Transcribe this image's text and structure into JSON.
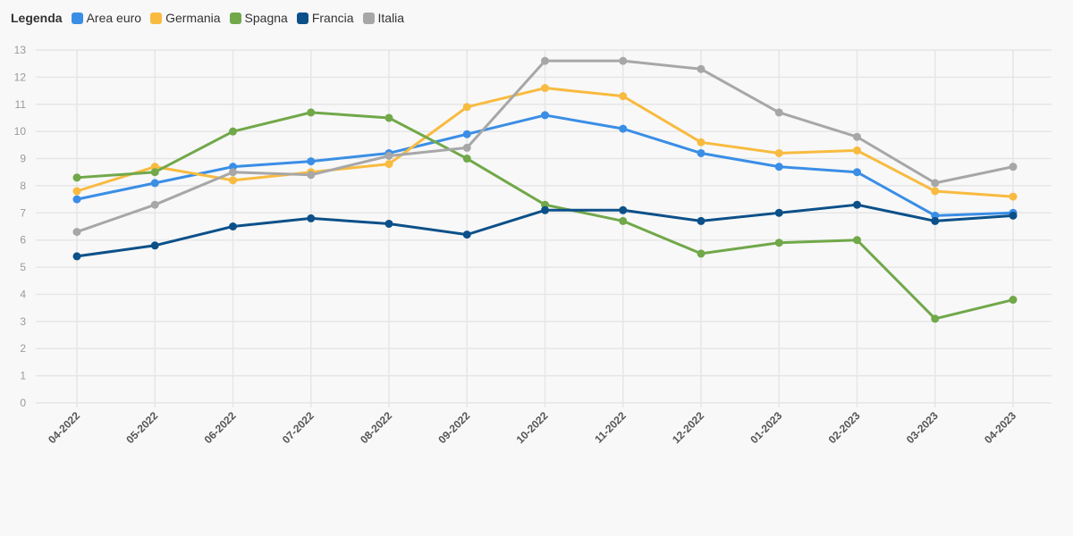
{
  "legend": {
    "title": "Legenda"
  },
  "chart_data": {
    "type": "line",
    "title": "",
    "xlabel": "",
    "ylabel": "",
    "ylim": [
      0,
      13
    ],
    "yticks": [
      0,
      1,
      2,
      3,
      4,
      5,
      6,
      7,
      8,
      9,
      10,
      11,
      12,
      13
    ],
    "grid": true,
    "legend_position": "top-left",
    "categories": [
      "04-2022",
      "05-2022",
      "06-2022",
      "07-2022",
      "08-2022",
      "09-2022",
      "10-2022",
      "11-2022",
      "12-2022",
      "01-2023",
      "02-2023",
      "03-2023",
      "04-2023"
    ],
    "series": [
      {
        "name": "Area euro",
        "color": "#3a8ee6",
        "values": [
          7.5,
          8.1,
          8.7,
          8.9,
          9.2,
          9.9,
          10.6,
          10.1,
          9.2,
          8.7,
          8.5,
          6.9,
          7.0
        ]
      },
      {
        "name": "Germania",
        "color": "#f8bb40",
        "values": [
          7.8,
          8.7,
          8.2,
          8.5,
          8.8,
          10.9,
          11.6,
          11.3,
          9.6,
          9.2,
          9.3,
          7.8,
          7.6
        ]
      },
      {
        "name": "Spagna",
        "color": "#71a84a",
        "values": [
          8.3,
          8.5,
          10.0,
          10.7,
          10.5,
          9.0,
          7.3,
          6.7,
          5.5,
          5.9,
          6.0,
          3.1,
          3.8
        ]
      },
      {
        "name": "Francia",
        "color": "#0c5089",
        "values": [
          5.4,
          5.8,
          6.5,
          6.8,
          6.6,
          6.2,
          7.1,
          7.1,
          6.7,
          7.0,
          7.3,
          6.7,
          6.9
        ]
      },
      {
        "name": "Italia",
        "color": "#a7a7a7",
        "values": [
          6.3,
          7.3,
          8.5,
          8.4,
          9.1,
          9.4,
          12.6,
          12.6,
          12.3,
          10.7,
          9.8,
          8.1,
          8.7
        ]
      }
    ]
  }
}
